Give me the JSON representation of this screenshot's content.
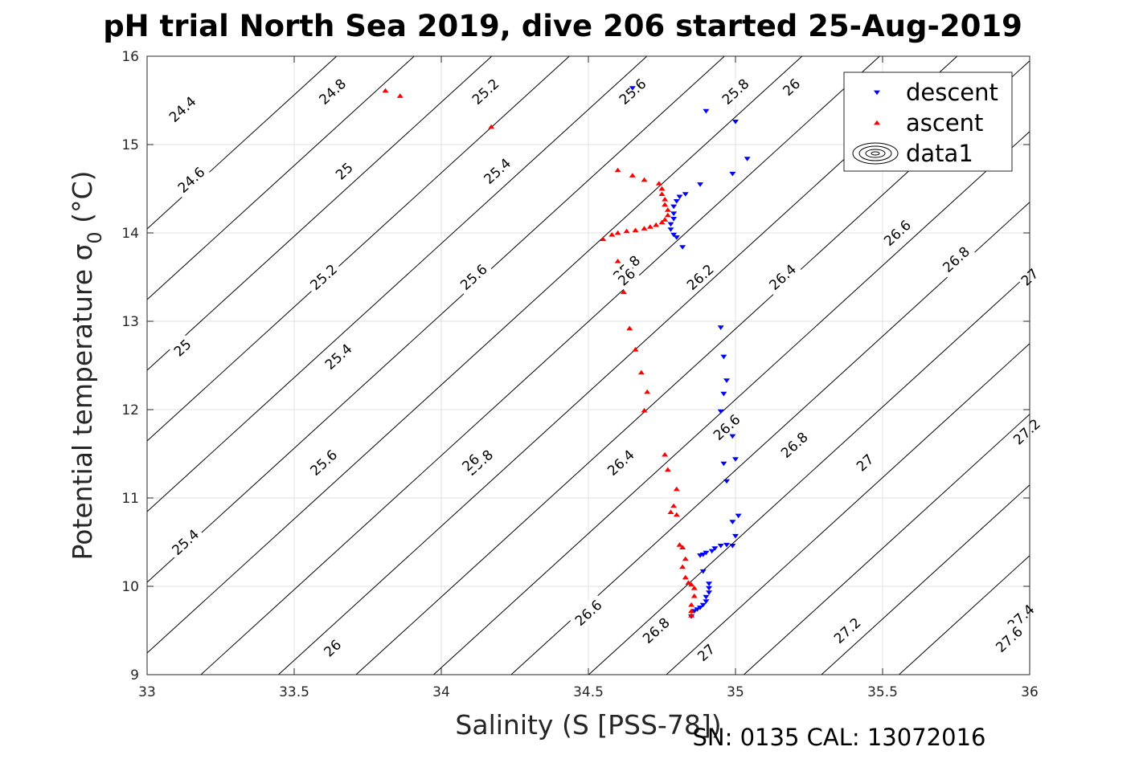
{
  "chart_data": {
    "type": "scatter",
    "title": "pH trial North Sea 2019, dive 206 started 25-Aug-2019",
    "xlabel": "Salinity (S [PSS-78])",
    "ylabel_main": "Potential temperature σ",
    "ylabel_sub": "0",
    "ylabel_unit": " (°C)",
    "footer": "SN: 0135  CAL: 13072016",
    "xlim": [
      33,
      36
    ],
    "ylim": [
      9,
      16
    ],
    "xticks": [
      33,
      33.5,
      34,
      34.5,
      35,
      35.5,
      36
    ],
    "xtick_labels": [
      "33",
      "33.5",
      "34",
      "34.5",
      "35",
      "35.5",
      "36"
    ],
    "yticks": [
      9,
      10,
      11,
      12,
      13,
      14,
      15,
      16
    ],
    "ytick_labels": [
      "9",
      "10",
      "11",
      "12",
      "13",
      "14",
      "15",
      "16"
    ],
    "grid": true,
    "legend_placement": "top-right",
    "legend": [
      {
        "label": "descent",
        "marker": "triangle-down",
        "color": "#0000ff"
      },
      {
        "label": "ascent",
        "marker": "triangle-up",
        "color": "#ff0000"
      },
      {
        "label": "data1",
        "marker": "contour",
        "color": "#000000"
      }
    ],
    "contours": {
      "levels": [
        24.4,
        24.6,
        24.8,
        25,
        25.2,
        25.4,
        25.6,
        25.8,
        26,
        26.2,
        26.4,
        26.6,
        26.8,
        27,
        27.2,
        27.4,
        27.6
      ],
      "labels": [
        {
          "text": "24.4",
          "s": 33.12,
          "t": 15.4
        },
        {
          "text": "24.6",
          "s": 33.15,
          "t": 14.6
        },
        {
          "text": "24.8",
          "s": 33.63,
          "t": 15.6
        },
        {
          "text": "25",
          "s": 33.67,
          "t": 14.7
        },
        {
          "text": "25",
          "s": 33.12,
          "t": 12.7
        },
        {
          "text": "25.2",
          "s": 34.15,
          "t": 15.6
        },
        {
          "text": "25.2",
          "s": 33.6,
          "t": 13.5
        },
        {
          "text": "25.4",
          "s": 34.19,
          "t": 14.7
        },
        {
          "text": "25.4",
          "s": 33.65,
          "t": 12.6
        },
        {
          "text": "25.4",
          "s": 33.13,
          "t": 10.5
        },
        {
          "text": "25.6",
          "s": 34.65,
          "t": 15.6
        },
        {
          "text": "25.6",
          "s": 34.11,
          "t": 13.5
        },
        {
          "text": "25.6",
          "s": 33.6,
          "t": 11.4
        },
        {
          "text": "25.8",
          "s": 35.0,
          "t": 15.6
        },
        {
          "text": "25.8",
          "s": 34.63,
          "t": 13.6
        },
        {
          "text": "25.8",
          "s": 34.13,
          "t": 11.4
        },
        {
          "text": "26",
          "s": 35.19,
          "t": 15.65
        },
        {
          "text": "26",
          "s": 34.63,
          "t": 13.5
        },
        {
          "text": "26",
          "s": 34.1,
          "t": 11.4
        },
        {
          "text": "26",
          "s": 33.63,
          "t": 9.3
        },
        {
          "text": "26.2",
          "s": 34.88,
          "t": 13.5
        },
        {
          "text": "26.2",
          "s": 34.61,
          "t": 11.4
        },
        {
          "text": "26.4",
          "s": 35.16,
          "t": 13.5
        },
        {
          "text": "26.4",
          "s": 34.61,
          "t": 11.4
        },
        {
          "text": "26.6",
          "s": 35.55,
          "t": 14.0
        },
        {
          "text": "26.6",
          "s": 34.97,
          "t": 11.8
        },
        {
          "text": "26.6",
          "s": 34.5,
          "t": 9.7
        },
        {
          "text": "26.8",
          "s": 35.75,
          "t": 13.7
        },
        {
          "text": "26.8",
          "s": 35.2,
          "t": 11.6
        },
        {
          "text": "26.8",
          "s": 34.73,
          "t": 9.5
        },
        {
          "text": "27",
          "s": 36.0,
          "t": 13.5
        },
        {
          "text": "27",
          "s": 35.44,
          "t": 11.4
        },
        {
          "text": "27",
          "s": 34.9,
          "t": 9.25
        },
        {
          "text": "27.2",
          "s": 35.99,
          "t": 11.75
        },
        {
          "text": "27.2",
          "s": 35.38,
          "t": 9.5
        },
        {
          "text": "27.4",
          "s": 35.97,
          "t": 9.65
        },
        {
          "text": "27.6",
          "s": 35.93,
          "t": 9.4
        }
      ]
    },
    "series": [
      {
        "name": "descent",
        "marker": "triangle-down",
        "color": "#0000ff",
        "points": [
          [
            34.65,
            15.64
          ],
          [
            34.9,
            15.38
          ],
          [
            35.0,
            15.26
          ],
          [
            35.04,
            14.84
          ],
          [
            34.99,
            14.67
          ],
          [
            34.88,
            14.55
          ],
          [
            34.83,
            14.44
          ],
          [
            34.81,
            14.41
          ],
          [
            34.8,
            14.36
          ],
          [
            34.79,
            14.3
          ],
          [
            34.79,
            14.22
          ],
          [
            34.79,
            14.16
          ],
          [
            34.78,
            14.1
          ],
          [
            34.78,
            14.04
          ],
          [
            34.79,
            13.98
          ],
          [
            34.8,
            13.95
          ],
          [
            34.82,
            13.84
          ],
          [
            34.95,
            12.93
          ],
          [
            34.96,
            12.6
          ],
          [
            34.97,
            12.33
          ],
          [
            34.96,
            12.18
          ],
          [
            34.95,
            11.98
          ],
          [
            34.99,
            11.7
          ],
          [
            35.0,
            11.44
          ],
          [
            34.96,
            11.39
          ],
          [
            34.97,
            11.19
          ],
          [
            35.01,
            10.8
          ],
          [
            34.99,
            10.73
          ],
          [
            35.0,
            10.57
          ],
          [
            34.99,
            10.46
          ],
          [
            34.97,
            10.47
          ],
          [
            34.95,
            10.46
          ],
          [
            34.93,
            10.43
          ],
          [
            34.92,
            10.4
          ],
          [
            34.9,
            10.38
          ],
          [
            34.89,
            10.36
          ],
          [
            34.88,
            10.35
          ],
          [
            34.89,
            10.17
          ],
          [
            34.91,
            10.03
          ],
          [
            34.91,
            9.98
          ],
          [
            34.91,
            9.93
          ],
          [
            34.9,
            9.88
          ],
          [
            34.9,
            9.83
          ],
          [
            34.89,
            9.79
          ],
          [
            34.88,
            9.76
          ],
          [
            34.87,
            9.74
          ],
          [
            34.86,
            9.72
          ],
          [
            34.85,
            9.66
          ]
        ]
      },
      {
        "name": "ascent",
        "marker": "triangle-up",
        "color": "#ff0000",
        "points": [
          [
            33.81,
            15.61
          ],
          [
            33.86,
            15.55
          ],
          [
            34.17,
            15.2
          ],
          [
            34.6,
            14.71
          ],
          [
            34.65,
            14.65
          ],
          [
            34.69,
            14.6
          ],
          [
            34.74,
            14.56
          ],
          [
            34.75,
            14.5
          ],
          [
            34.75,
            14.44
          ],
          [
            34.76,
            14.38
          ],
          [
            34.76,
            14.32
          ],
          [
            34.77,
            14.26
          ],
          [
            34.77,
            14.2
          ],
          [
            34.76,
            14.15
          ],
          [
            34.75,
            14.12
          ],
          [
            34.73,
            14.09
          ],
          [
            34.71,
            14.07
          ],
          [
            34.69,
            14.05
          ],
          [
            34.66,
            14.03
          ],
          [
            34.63,
            14.02
          ],
          [
            34.6,
            14.0
          ],
          [
            34.58,
            13.98
          ],
          [
            34.55,
            13.93
          ],
          [
            34.6,
            13.68
          ],
          [
            34.62,
            13.33
          ],
          [
            34.64,
            12.92
          ],
          [
            34.66,
            12.68
          ],
          [
            34.68,
            12.42
          ],
          [
            34.7,
            12.2
          ],
          [
            34.69,
            11.99
          ],
          [
            34.76,
            11.49
          ],
          [
            34.77,
            11.32
          ],
          [
            34.8,
            11.1
          ],
          [
            34.79,
            10.91
          ],
          [
            34.78,
            10.84
          ],
          [
            34.8,
            10.81
          ],
          [
            34.81,
            10.47
          ],
          [
            34.82,
            10.44
          ],
          [
            34.83,
            10.31
          ],
          [
            34.82,
            10.22
          ],
          [
            34.83,
            10.1
          ],
          [
            34.84,
            10.04
          ],
          [
            34.85,
            10.02
          ],
          [
            34.86,
            9.98
          ],
          [
            34.86,
            9.89
          ],
          [
            34.85,
            9.79
          ],
          [
            34.85,
            9.72
          ],
          [
            34.85,
            9.67
          ]
        ]
      }
    ]
  }
}
